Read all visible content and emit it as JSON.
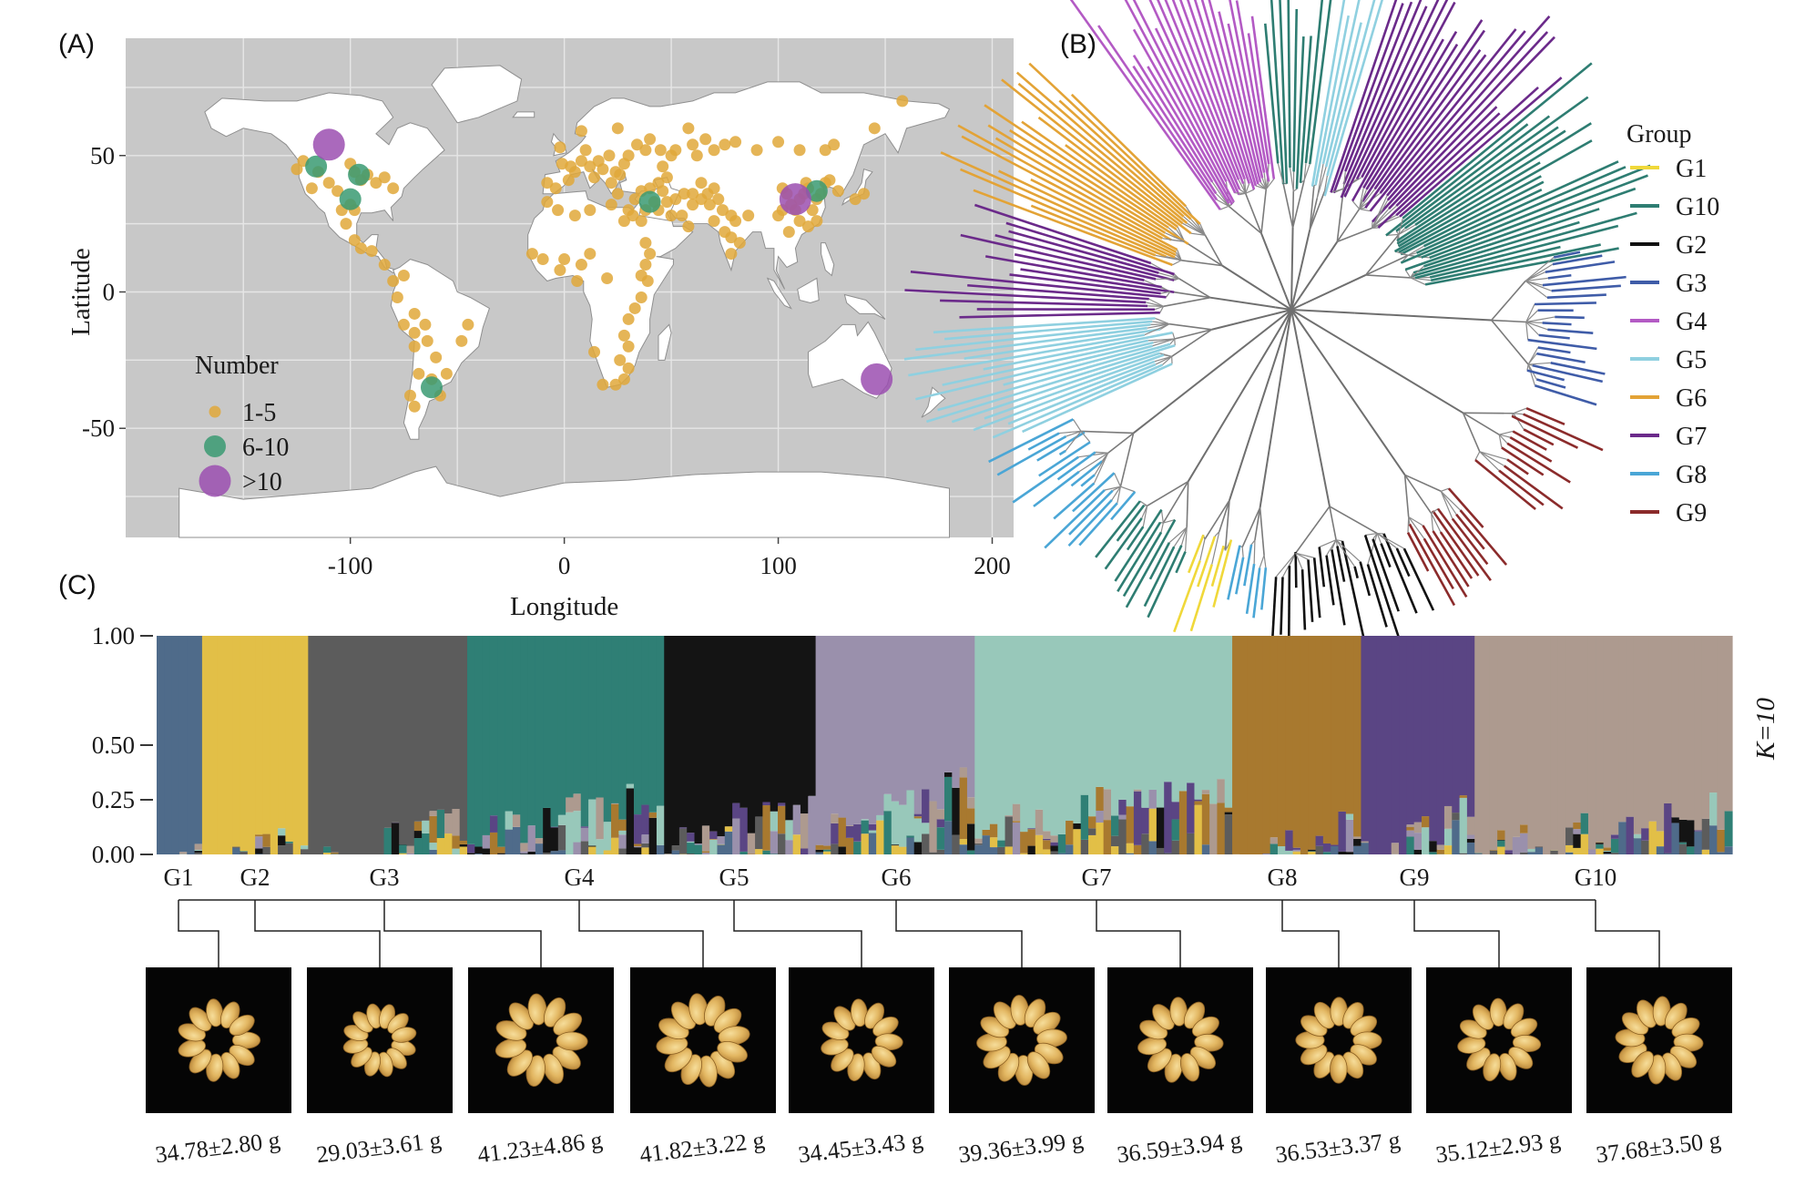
{
  "panels": {
    "a": "(A)",
    "b": "(B)",
    "c": "(C)"
  },
  "chart_data": [
    {
      "type": "scatter",
      "title": "(A)",
      "xlabel": "Longitude",
      "ylabel": "Latitude",
      "xlim": [
        -205,
        210
      ],
      "ylim": [
        -90,
        93
      ],
      "xticks": [
        -100,
        0,
        100,
        200
      ],
      "yticks": [
        50,
        0,
        -50
      ],
      "legend": {
        "title": "Number",
        "position": "bottom-left",
        "entries": [
          {
            "label": "1-5",
            "color": "#e0a83a",
            "size": "small"
          },
          {
            "label": "6-10",
            "color": "#3a9a72",
            "size": "medium"
          },
          {
            "label": ">10",
            "color": "#9b4fb0",
            "size": "large"
          }
        ]
      },
      "series": [
        {
          "name": "1-5",
          "color": "#e0a83a",
          "points": [
            [
              -125,
              45
            ],
            [
              -122,
              48
            ],
            [
              -118,
              38
            ],
            [
              -115,
              44
            ],
            [
              -110,
              40
            ],
            [
              -106,
              37
            ],
            [
              -100,
              47
            ],
            [
              -98,
              44
            ],
            [
              -95,
              41
            ],
            [
              -92,
              43
            ],
            [
              -88,
              40
            ],
            [
              -84,
              42
            ],
            [
              -80,
              38
            ],
            [
              -100,
              32
            ],
            [
              -104,
              30
            ],
            [
              -98,
              30
            ],
            [
              -102,
              25
            ],
            [
              -98,
              19
            ],
            [
              -95,
              16
            ],
            [
              -90,
              15
            ],
            [
              -84,
              10
            ],
            [
              -80,
              4
            ],
            [
              -75,
              6
            ],
            [
              -78,
              -2
            ],
            [
              -70,
              -8
            ],
            [
              -65,
              -12
            ],
            [
              -75,
              -12
            ],
            [
              -70,
              -15
            ],
            [
              -64,
              -18
            ],
            [
              -60,
              -24
            ],
            [
              -70,
              -20
            ],
            [
              -68,
              -30
            ],
            [
              -72,
              -38
            ],
            [
              -70,
              -42
            ],
            [
              -62,
              -32
            ],
            [
              -55,
              -30
            ],
            [
              -48,
              -18
            ],
            [
              -45,
              -12
            ],
            [
              -58,
              -38
            ],
            [
              -8,
              40
            ],
            [
              -4,
              38
            ],
            [
              2,
              41
            ],
            [
              -1,
              47
            ],
            [
              3,
              46
            ],
            [
              5,
              44
            ],
            [
              8,
              48
            ],
            [
              10,
              52
            ],
            [
              12,
              46
            ],
            [
              14,
              42
            ],
            [
              16,
              48
            ],
            [
              18,
              45
            ],
            [
              21,
              50
            ],
            [
              24,
              44
            ],
            [
              22,
              40
            ],
            [
              26,
              43
            ],
            [
              28,
              47
            ],
            [
              30,
              50
            ],
            [
              34,
              54
            ],
            [
              38,
              52
            ],
            [
              40,
              56
            ],
            [
              45,
              52
            ],
            [
              50,
              50
            ],
            [
              46,
              46
            ],
            [
              52,
              52
            ],
            [
              60,
              54
            ],
            [
              66,
              56
            ],
            [
              62,
              50
            ],
            [
              70,
              52
            ],
            [
              75,
              54
            ],
            [
              80,
              55
            ],
            [
              90,
              52
            ],
            [
              100,
              55
            ],
            [
              110,
              52
            ],
            [
              122,
              52
            ],
            [
              126,
              54
            ],
            [
              145,
              60
            ],
            [
              158,
              70
            ],
            [
              -2,
              53
            ],
            [
              8,
              59
            ],
            [
              25,
              60
            ],
            [
              58,
              60
            ],
            [
              48,
              42
            ],
            [
              -8,
              33
            ],
            [
              -3,
              30
            ],
            [
              5,
              28
            ],
            [
              12,
              30
            ],
            [
              22,
              32
            ],
            [
              30,
              30
            ],
            [
              25,
              36
            ],
            [
              33,
              34
            ],
            [
              36,
              37
            ],
            [
              40,
              38
            ],
            [
              44,
              40
            ],
            [
              46,
              37
            ],
            [
              48,
              33
            ],
            [
              52,
              34
            ],
            [
              56,
              36
            ],
            [
              60,
              32
            ],
            [
              64,
              34
            ],
            [
              67,
              36
            ],
            [
              70,
              38
            ],
            [
              72,
              34
            ],
            [
              74,
              30
            ],
            [
              78,
              28
            ],
            [
              80,
              26
            ],
            [
              86,
              28
            ],
            [
              64,
              40
            ],
            [
              60,
              36
            ],
            [
              68,
              32
            ],
            [
              55,
              28
            ],
            [
              58,
              24
            ],
            [
              50,
              28
            ],
            [
              44,
              30
            ],
            [
              38,
              30
            ],
            [
              36,
              26
            ],
            [
              32,
              28
            ],
            [
              28,
              26
            ],
            [
              42,
              33
            ],
            [
              70,
              26
            ],
            [
              75,
              22
            ],
            [
              78,
              20
            ],
            [
              78,
              14
            ],
            [
              82,
              18
            ],
            [
              38,
              18
            ],
            [
              40,
              14
            ],
            [
              38,
              10
            ],
            [
              36,
              6
            ],
            [
              39,
              4
            ],
            [
              36,
              -2
            ],
            [
              33,
              -6
            ],
            [
              30,
              -10
            ],
            [
              28,
              -16
            ],
            [
              30,
              -20
            ],
            [
              26,
              -25
            ],
            [
              30,
              -28
            ],
            [
              24,
              -34
            ],
            [
              28,
              -32
            ],
            [
              18,
              -34
            ],
            [
              14,
              -22
            ],
            [
              12,
              14
            ],
            [
              0,
              12
            ],
            [
              -10,
              12
            ],
            [
              -15,
              14
            ],
            [
              8,
              10
            ],
            [
              6,
              4
            ],
            [
              -2,
              8
            ],
            [
              20,
              5
            ],
            [
              102,
              38
            ],
            [
              104,
              36
            ],
            [
              106,
              32
            ],
            [
              108,
              30
            ],
            [
              110,
              34
            ],
            [
              112,
              36
            ],
            [
              114,
              38
            ],
            [
              116,
              30
            ],
            [
              118,
              34
            ],
            [
              120,
              36
            ],
            [
              122,
              40
            ],
            [
              124,
              41
            ],
            [
              128,
              37
            ],
            [
              102,
              30
            ],
            [
              100,
              28
            ],
            [
              118,
              26
            ],
            [
              114,
              24
            ],
            [
              110,
              26
            ],
            [
              140,
              36
            ],
            [
              136,
              34
            ],
            [
              105,
              22
            ],
            [
              113,
              40
            ]
          ]
        },
        {
          "name": "6-10",
          "color": "#3a9a72",
          "points": [
            [
              -116,
              46
            ],
            [
              -96,
              43
            ],
            [
              -100,
              34
            ],
            [
              -62,
              -35
            ],
            [
              40,
              33
            ],
            [
              118,
              37
            ]
          ]
        },
        {
          "name": ">10",
          "color": "#9b4fb0",
          "points": [
            [
              -110,
              54
            ],
            [
              108,
              34
            ],
            [
              146,
              -32
            ]
          ]
        }
      ]
    },
    {
      "type": "tree",
      "title": "(B)",
      "legend": {
        "title": "Group",
        "position": "right",
        "entries": [
          {
            "label": "G1",
            "color": "#f0d83a"
          },
          {
            "label": "G10",
            "color": "#2e7d72"
          },
          {
            "label": "G2",
            "color": "#111111"
          },
          {
            "label": "G3",
            "color": "#3f5ca8"
          },
          {
            "label": "G4",
            "color": "#b35ac4"
          },
          {
            "label": "G5",
            "color": "#8fd0e0"
          },
          {
            "label": "G6",
            "color": "#e3a336"
          },
          {
            "label": "G7",
            "color": "#6b2a8a"
          },
          {
            "label": "G8",
            "color": "#4aa6d6"
          },
          {
            "label": "G9",
            "color": "#8b2b2b"
          }
        ]
      },
      "clades": [
        {
          "group": "G6",
          "from_deg": 135,
          "to_deg": 160,
          "leaves": 20
        },
        {
          "group": "G4",
          "from_deg": 97,
          "to_deg": 126,
          "leaves": 22
        },
        {
          "group": "G10",
          "from_deg": 82,
          "to_deg": 96,
          "leaves": 9
        },
        {
          "group": "G5",
          "from_deg": 73,
          "to_deg": 81,
          "leaves": 6
        },
        {
          "group": "G7",
          "from_deg": 40,
          "to_deg": 72,
          "leaves": 22
        },
        {
          "group": "G10",
          "from_deg": 10,
          "to_deg": 40,
          "leaves": 22
        },
        {
          "group": "G7",
          "from_deg": 161,
          "to_deg": 182,
          "leaves": 15
        },
        {
          "group": "G5",
          "from_deg": 183,
          "to_deg": 205,
          "leaves": 16
        },
        {
          "group": "G8",
          "from_deg": 206,
          "to_deg": 230,
          "leaves": 18
        },
        {
          "group": "G10",
          "from_deg": 231,
          "to_deg": 247,
          "leaves": 12
        },
        {
          "group": "G1",
          "from_deg": 248,
          "to_deg": 256,
          "leaves": 5
        },
        {
          "group": "G8",
          "from_deg": 257,
          "to_deg": 265,
          "leaves": 5
        },
        {
          "group": "G2",
          "from_deg": 266,
          "to_deg": 296,
          "leaves": 20
        },
        {
          "group": "G9",
          "from_deg": 297,
          "to_deg": 312,
          "leaves": 10
        },
        {
          "group": "G9",
          "from_deg": 320,
          "to_deg": 338,
          "leaves": 12
        },
        {
          "group": "G3",
          "from_deg": 342,
          "to_deg": 372,
          "leaves": 20
        }
      ]
    },
    {
      "type": "bar",
      "stacked": true,
      "title": "(C)",
      "side_label": "K=10",
      "ylim": [
        0,
        1
      ],
      "yticks": [
        "1.00",
        "0.50",
        "0.25",
        "0.00"
      ],
      "ytick_values": [
        1,
        0.5,
        0.25,
        0
      ],
      "component_colors": [
        "#4f6b8a",
        "#e2bf47",
        "#5c5c5c",
        "#2f7f75",
        "#141414",
        "#9a90ac",
        "#98c8ba",
        "#a8792f",
        "#5a4584",
        "#ad9a8f"
      ],
      "groups": [
        {
          "label": "G1",
          "count": 6,
          "main": 0,
          "purity": 0.97
        },
        {
          "label": "G2",
          "count": 14,
          "main": 1,
          "purity": 0.9
        },
        {
          "label": "G3",
          "count": 21,
          "main": 2,
          "purity": 0.86
        },
        {
          "label": "G4",
          "count": 26,
          "main": 3,
          "purity": 0.74
        },
        {
          "label": "G5",
          "count": 20,
          "main": 4,
          "purity": 0.76
        },
        {
          "label": "G6",
          "count": 21,
          "main": 5,
          "purity": 0.7
        },
        {
          "label": "G7",
          "count": 34,
          "main": 6,
          "purity": 0.7
        },
        {
          "label": "G8",
          "count": 17,
          "main": 7,
          "purity": 0.84
        },
        {
          "label": "G9",
          "count": 15,
          "main": 8,
          "purity": 0.82
        },
        {
          "label": "G10",
          "count": 34,
          "main": 9,
          "purity": 0.8
        }
      ],
      "weights": [
        "34.78±2.80 g",
        "29.03±3.61 g",
        "41.23±4.86 g",
        "41.82±3.22 g",
        "34.45±3.43 g",
        "39.36±3.99 g",
        "36.59±3.94 g",
        "36.53±3.37 g",
        "35.12±2.93 g",
        "37.68±3.50 g"
      ]
    }
  ]
}
